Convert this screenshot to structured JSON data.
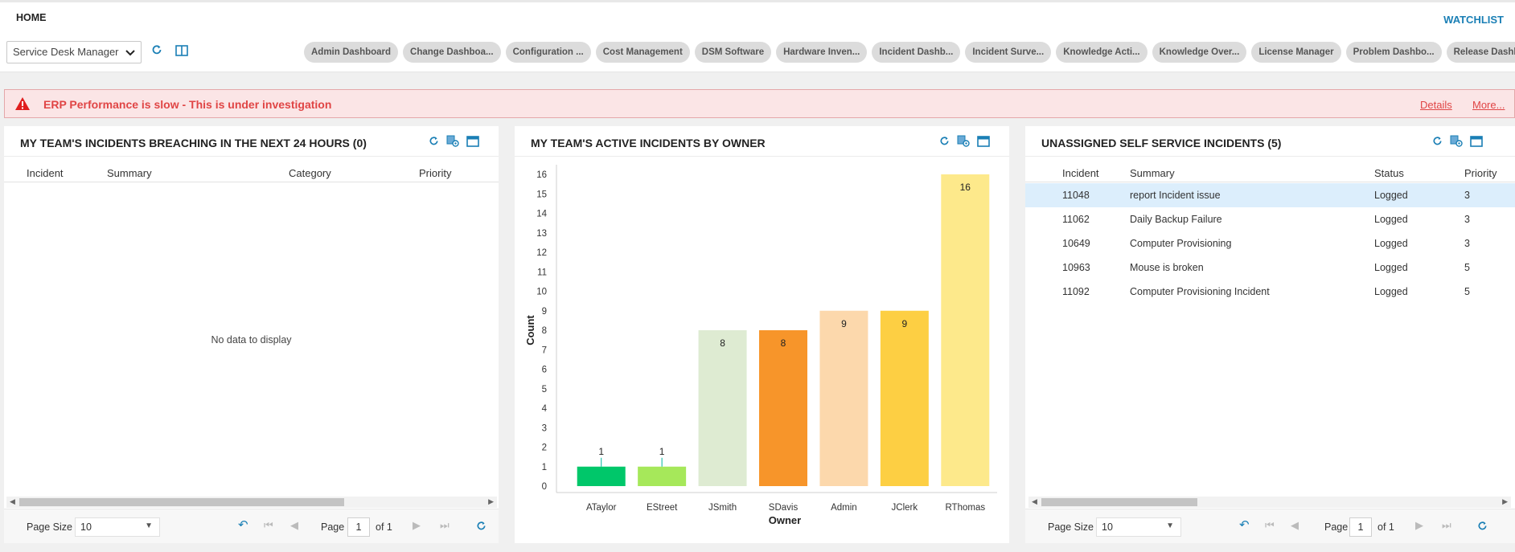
{
  "nav": {
    "home_tab": "HOME",
    "watchlist": "WATCHLIST"
  },
  "toolbar": {
    "view_select": "Service Desk Manager",
    "chips": [
      "Admin Dashboard",
      "Change Dashboa...",
      "Configuration ...",
      "Cost Management",
      "DSM Software",
      "Hardware Inven...",
      "Incident Dashb...",
      "Incident Surve...",
      "Knowledge Acti...",
      "Knowledge Over...",
      "License Manager",
      "Problem Dashbo...",
      "Release Dashbo..."
    ]
  },
  "alert": {
    "text": "ERP Performance is slow - This is under investigation",
    "details": "Details",
    "more": "More..."
  },
  "panel1": {
    "title": "MY TEAM'S INCIDENTS BREACHING IN THE NEXT 24 HOURS (0)",
    "columns": [
      "Incident",
      "Summary",
      "Category",
      "Priority"
    ],
    "empty_text": "No data to display",
    "pager": {
      "page_size_label": "Page Size",
      "page_size": "10",
      "page_label": "Page",
      "page": "1",
      "of_label": "of 1"
    }
  },
  "panel2": {
    "title": "MY TEAM'S ACTIVE INCIDENTS BY OWNER"
  },
  "panel3": {
    "title": "UNASSIGNED SELF SERVICE INCIDENTS (5)",
    "columns": [
      "Incident",
      "Summary",
      "Status",
      "Priority"
    ],
    "rows": [
      {
        "incident": "11048",
        "summary": "report Incident issue",
        "status": "Logged",
        "priority": "3"
      },
      {
        "incident": "11062",
        "summary": "Daily Backup Failure",
        "status": "Logged",
        "priority": "3"
      },
      {
        "incident": "10649",
        "summary": "Computer Provisioning",
        "status": "Logged",
        "priority": "3"
      },
      {
        "incident": "10963",
        "summary": "Mouse is broken",
        "status": "Logged",
        "priority": "5"
      },
      {
        "incident": "11092",
        "summary": "Computer Provisioning Incident",
        "status": "Logged",
        "priority": "5"
      }
    ],
    "pager": {
      "page_size_label": "Page Size",
      "page_size": "10",
      "page_label": "Page",
      "page": "1",
      "of_label": "of 1"
    }
  },
  "colors": {
    "accent": "#1a7fb5",
    "alert": "#e04545"
  },
  "chart_data": {
    "type": "bar",
    "title": "MY TEAM'S ACTIVE INCIDENTS BY OWNER",
    "xlabel": "Owner",
    "ylabel": "Count",
    "categories": [
      "ATaylor",
      "EStreet",
      "JSmith",
      "SDavis",
      "Admin",
      "JClerk",
      "RThomas"
    ],
    "values": [
      1,
      1,
      8,
      8,
      9,
      9,
      16
    ],
    "colors": [
      "#00c76a",
      "#a6e85a",
      "#deebd2",
      "#f7952a",
      "#fcd8ac",
      "#fdcf43",
      "#fde98b"
    ],
    "ylim": [
      0,
      16
    ],
    "yticks": [
      0,
      1,
      2,
      3,
      4,
      5,
      6,
      7,
      8,
      9,
      10,
      11,
      12,
      13,
      14,
      15,
      16
    ],
    "grid": false,
    "legend": "none"
  }
}
